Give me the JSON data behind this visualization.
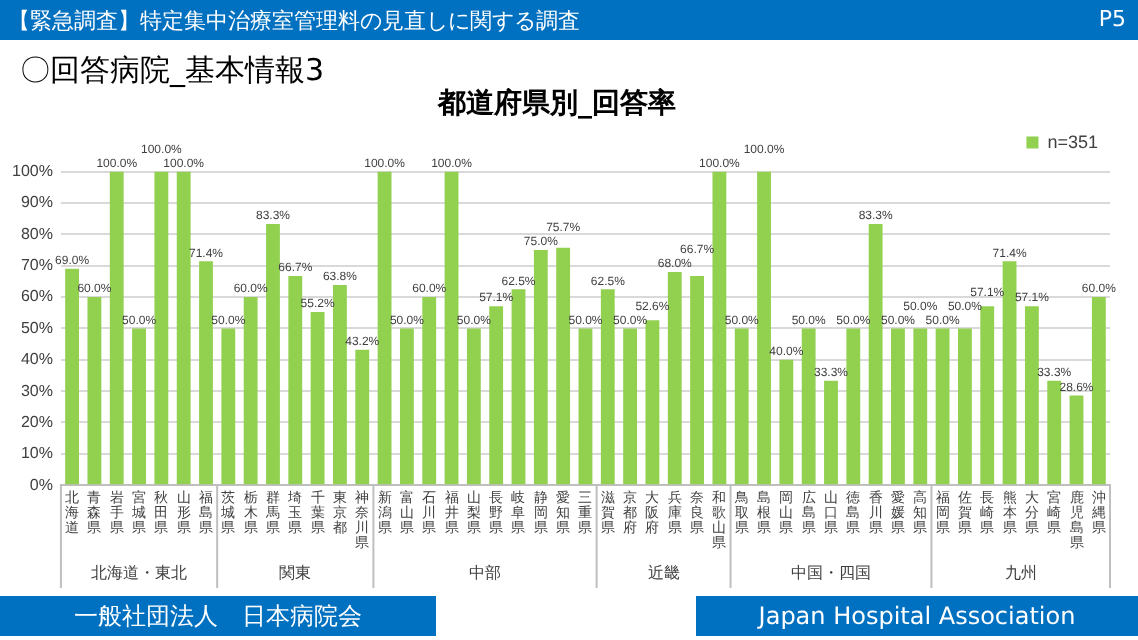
{
  "chart_data": {
    "type": "bar",
    "title": "都道府県別_回答率",
    "categories": [
      "北海道",
      "青森県",
      "岩手県",
      "宮城県",
      "秋田県",
      "山形県",
      "福島県",
      "茨城県",
      "栃木県",
      "群馬県",
      "埼玉県",
      "千葉県",
      "東京都",
      "神奈川県",
      "新潟県",
      "富山県",
      "石川県",
      "福井県",
      "山梨県",
      "長野県",
      "岐阜県",
      "静岡県",
      "愛知県",
      "三重県",
      "滋賀県",
      "京都府",
      "大阪府",
      "兵庫県",
      "奈良県",
      "和歌山県",
      "鳥取県",
      "島根県",
      "岡山県",
      "広島県",
      "山口県",
      "徳島県",
      "香川県",
      "愛媛県",
      "高知県",
      "福岡県",
      "佐賀県",
      "長崎県",
      "熊本県",
      "大分県",
      "宮崎県",
      "鹿児島県",
      "沖縄県"
    ],
    "series": [
      {
        "name": "n=351",
        "color": "#92d050",
        "values": [
          69.0,
          60.0,
          100,
          50.0,
          100,
          100,
          71.4,
          50.0,
          60.0,
          83.3,
          66.7,
          55.2,
          63.8,
          43.2,
          100,
          50.0,
          60.0,
          100,
          50.0,
          57.1,
          62.5,
          75.0,
          75.7,
          50.0,
          62.5,
          50.0,
          52.6,
          68.0,
          66.7,
          100,
          50.0,
          100,
          40.0,
          50.0,
          33.3,
          50.0,
          83.3,
          50.0,
          50.0,
          50.0,
          50.0,
          57.1,
          71.4,
          57.1,
          33.3,
          28.6,
          60.0
        ],
        "value_labels": [
          "69.0%",
          "60.0%",
          "100.0%",
          "50.0%",
          "100.0%",
          "100.0%",
          "71.4%",
          "50.0%",
          "60.0%",
          "83.3%",
          "66.7%",
          "55.2%",
          "63.8%",
          "43.2%",
          "100.0%",
          "50.0%",
          "60.0%",
          "100.0%",
          "50.0%",
          "57.1%",
          "62.5%",
          "75.0%",
          "75.7%",
          "50.0%",
          "62.5%",
          "50.0%",
          "52.6%",
          "68.0%",
          "66.7%",
          "100.0%",
          "50.0%",
          "100.0%",
          "40.0%",
          "50.0%",
          "33.3%",
          "50.0%",
          "83.3%",
          "50.0%",
          "50.0%",
          "50.0%",
          "50.0%",
          "57.1%",
          "71.4%",
          "57.1%",
          "33.3%",
          "28.6%",
          "60.0%"
        ]
      }
    ],
    "ylim": [
      0,
      100
    ],
    "yticks": [
      {
        "value": 0,
        "label": "0%"
      },
      {
        "value": 10,
        "label": "10%"
      },
      {
        "value": 20,
        "label": "20%"
      },
      {
        "value": 30,
        "label": "30%"
      },
      {
        "value": 40,
        "label": "40%"
      },
      {
        "value": 50,
        "label": "50%"
      },
      {
        "value": 60,
        "label": "60%"
      },
      {
        "value": 70,
        "label": "70%"
      },
      {
        "value": 80,
        "label": "80%"
      },
      {
        "value": 90,
        "label": "90%"
      },
      {
        "value": 100,
        "label": "100%"
      }
    ],
    "grid": "y",
    "legend": "top right",
    "annotations": [
      "【緊急調査】特定集中治療室管理料の見直しに関する調査",
      "P5",
      "〇回答病院_基本情報3",
      "一般社団法人　日本病院会",
      "Japan Hospital Association",
      "北海道・東北",
      "関東",
      "中部",
      "近畿",
      "中国・四国",
      "九州"
    ]
  }
}
